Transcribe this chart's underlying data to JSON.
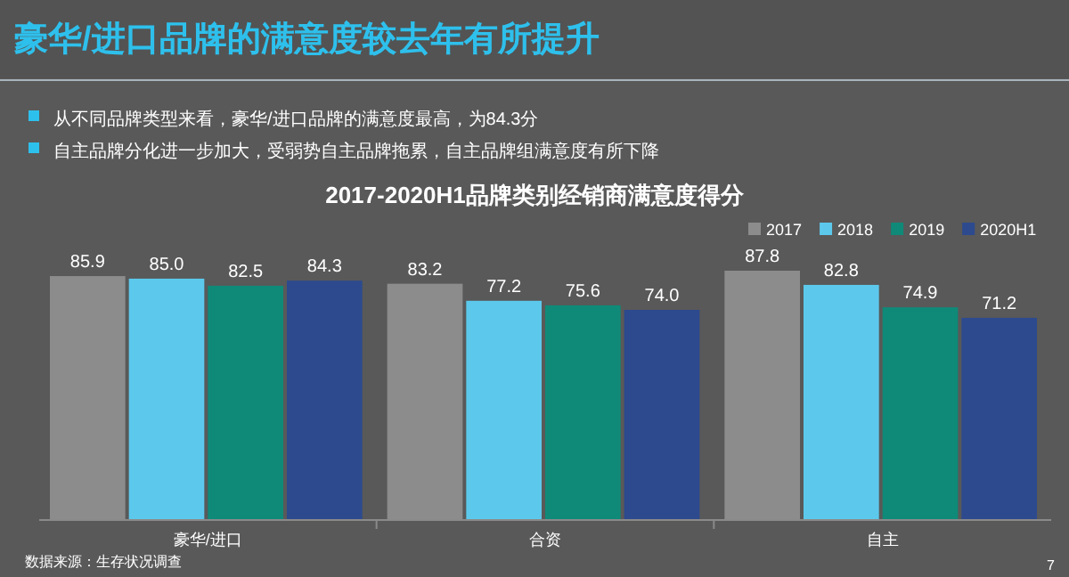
{
  "chart_data": {
    "type": "bar",
    "title": "豪华/进口品牌的满意度较去年有所提升",
    "subtitle": "2017-2020H1品牌类别经销商满意度得分",
    "categories": [
      "豪华/进口",
      "合资",
      "自主"
    ],
    "series": [
      {
        "name": "2017",
        "color": "#8c8c8c",
        "values": [
          85.9,
          83.2,
          87.8
        ],
        "value_labels": [
          "85.9",
          "83.2",
          "87.8"
        ]
      },
      {
        "name": "2018",
        "color": "#5cc9ec",
        "values": [
          85.0,
          77.2,
          82.8
        ],
        "value_labels": [
          "85.0",
          "77.2",
          "82.8"
        ]
      },
      {
        "name": "2019",
        "color": "#0f8a78",
        "values": [
          82.5,
          75.6,
          74.9
        ],
        "value_labels": [
          "82.5",
          "75.6",
          "74.9"
        ]
      },
      {
        "name": "2020H1",
        "color": "#2d4a8e",
        "values": [
          84.3,
          74.0,
          71.2
        ],
        "value_labels": [
          "84.3",
          "74.0",
          "71.2"
        ]
      }
    ],
    "legend": "top right",
    "annotations": [
      "从不同品牌类型来看，豪华/进口品牌的满意度最高，为84.3分",
      "自主品牌分化进一步加大，受弱势自主品牌拖累，自主品牌组满意度有所下降",
      "数据来源：生存状况调查",
      "7"
    ]
  }
}
